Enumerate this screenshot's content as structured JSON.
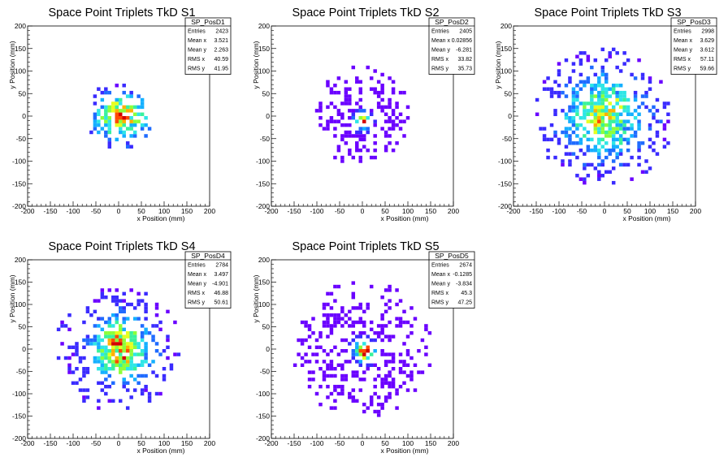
{
  "chart_data": [
    {
      "type": "heatmap",
      "title": "Space Point Triplets TkD S1",
      "xlabel": "x Position (mm)",
      "ylabel": "y Position (mm)",
      "xlim": [
        -200,
        200
      ],
      "ylim": [
        -200,
        200
      ],
      "x_ticks": [
        "-200",
        "-150",
        "-100",
        "-50",
        "0",
        "50",
        "100",
        "150",
        "200"
      ],
      "y_ticks": [
        "-200",
        "-150",
        "-100",
        "-50",
        "0",
        "50",
        "100",
        "150",
        "200"
      ],
      "stats": {
        "name": "SP_PosD1",
        "rows": [
          {
            "label": "Entries",
            "value": "2423"
          },
          {
            "label": "Mean x",
            "value": "3.521"
          },
          {
            "label": "Mean y",
            "value": "2.263"
          },
          {
            "label": "RMS x",
            "value": "40.59"
          },
          {
            "label": "RMS y",
            "value": "41.95"
          }
        ]
      },
      "distribution": {
        "center_x": 5,
        "center_y": 0,
        "spread_x": 38,
        "spread_y": 30,
        "radius": 75,
        "peak": "sharp"
      }
    },
    {
      "type": "heatmap",
      "title": "Space Point Triplets TkD S2",
      "xlabel": "x Position (mm)",
      "ylabel": "y Position (mm)",
      "xlim": [
        -200,
        200
      ],
      "ylim": [
        -200,
        200
      ],
      "x_ticks": [
        "-200",
        "-150",
        "-100",
        "-50",
        "0",
        "50",
        "100",
        "150",
        "200"
      ],
      "y_ticks": [
        "-200",
        "-150",
        "-100",
        "-50",
        "0",
        "50",
        "100",
        "150",
        "200"
      ],
      "stats": {
        "name": "SP_PosD2",
        "rows": [
          {
            "label": "Entries",
            "value": "2405"
          },
          {
            "label": "Mean x",
            "value": "0.02856"
          },
          {
            "label": "Mean y",
            "value": "-6.281"
          },
          {
            "label": "RMS x",
            "value": "33.82"
          },
          {
            "label": "RMS y",
            "value": "35.73"
          }
        ]
      },
      "distribution": {
        "center_x": 0,
        "center_y": -10,
        "spread_x": 12,
        "spread_y": 12,
        "radius": 110,
        "peak": "narrow"
      }
    },
    {
      "type": "heatmap",
      "title": "Space Point Triplets TkD S3",
      "xlabel": "x Position (mm)",
      "ylabel": "y Position (mm)",
      "xlim": [
        -200,
        200
      ],
      "ylim": [
        -200,
        200
      ],
      "x_ticks": [
        "-200",
        "-150",
        "-100",
        "-50",
        "0",
        "50",
        "100",
        "150",
        "200"
      ],
      "y_ticks": [
        "-200",
        "-150",
        "-100",
        "-50",
        "0",
        "50",
        "100",
        "150",
        "200"
      ],
      "stats": {
        "name": "SP_PosD3",
        "rows": [
          {
            "label": "Entries",
            "value": "2998"
          },
          {
            "label": "Mean x",
            "value": "3.629"
          },
          {
            "label": "Mean y",
            "value": "3.612"
          },
          {
            "label": "RMS x",
            "value": "57.11"
          },
          {
            "label": "RMS y",
            "value": "59.66"
          }
        ]
      },
      "distribution": {
        "center_x": 0,
        "center_y": 0,
        "spread_x": 55,
        "spread_y": 55,
        "radius": 155,
        "peak": "broad"
      }
    },
    {
      "type": "heatmap",
      "title": "Space Point Triplets TkD S4",
      "xlabel": "x Position (mm)",
      "ylabel": "y Position (mm)",
      "xlim": [
        -200,
        200
      ],
      "ylim": [
        -200,
        200
      ],
      "x_ticks": [
        "-200",
        "-150",
        "-100",
        "-50",
        "0",
        "50",
        "100",
        "150",
        "200"
      ],
      "y_ticks": [
        "-200",
        "-150",
        "-100",
        "-50",
        "0",
        "50",
        "100",
        "150",
        "200"
      ],
      "stats": {
        "name": "SP_PosD4",
        "rows": [
          {
            "label": "Entries",
            "value": "2784"
          },
          {
            "label": "Mean x",
            "value": "3.497"
          },
          {
            "label": "Mean y",
            "value": "-4.901"
          },
          {
            "label": "RMS x",
            "value": "46.88"
          },
          {
            "label": "RMS y",
            "value": "50.61"
          }
        ]
      },
      "distribution": {
        "center_x": 5,
        "center_y": 0,
        "spread_x": 40,
        "spread_y": 45,
        "radius": 140,
        "peak": "sharp"
      }
    },
    {
      "type": "heatmap",
      "title": "Space Point Triplets TkD S5",
      "xlabel": "x Position (mm)",
      "ylabel": "y Position (mm)",
      "xlim": [
        -200,
        200
      ],
      "ylim": [
        -200,
        200
      ],
      "x_ticks": [
        "-200",
        "-150",
        "-100",
        "-50",
        "0",
        "50",
        "100",
        "150",
        "200"
      ],
      "y_ticks": [
        "-200",
        "-150",
        "-100",
        "-50",
        "0",
        "50",
        "100",
        "150",
        "200"
      ],
      "stats": {
        "name": "SP_PosD5",
        "rows": [
          {
            "label": "Entries",
            "value": "2674"
          },
          {
            "label": "Mean x",
            "value": "-0.1285"
          },
          {
            "label": "Mean y",
            "value": "-3.834"
          },
          {
            "label": "RMS x",
            "value": "45.3"
          },
          {
            "label": "RMS y",
            "value": "47.25"
          }
        ]
      },
      "distribution": {
        "center_x": 5,
        "center_y": -5,
        "spread_x": 15,
        "spread_y": 15,
        "radius": 155,
        "peak": "narrow"
      }
    }
  ],
  "palette": [
    "#6a00ff",
    "#3a2bff",
    "#1f6bff",
    "#14b0ff",
    "#2ee6e6",
    "#39f29c",
    "#8cff3a",
    "#e6ff1f",
    "#ffb000",
    "#ff4a00",
    "#d40000"
  ]
}
